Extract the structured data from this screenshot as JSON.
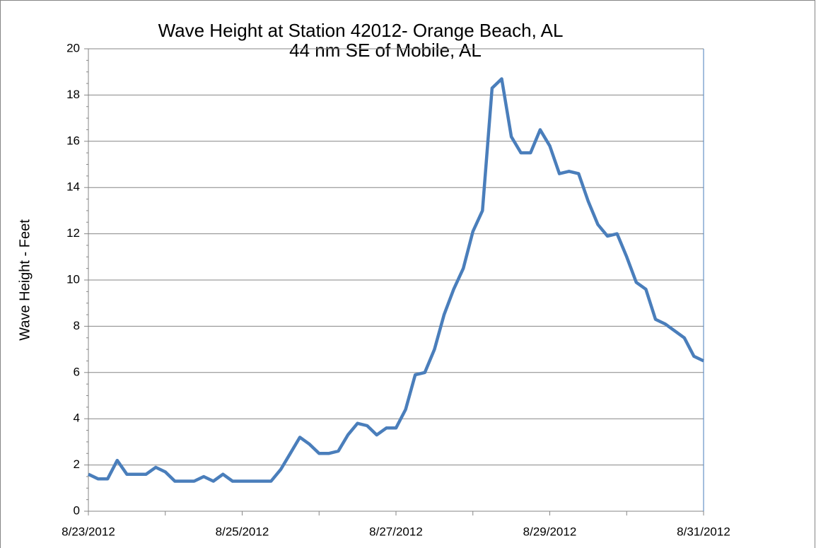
{
  "chart_data": {
    "type": "line",
    "title": "Wave Height at Station 42012- Orange Beach, AL",
    "subtitle": "44 nm SE of Mobile, AL",
    "y_label": "Wave Height -  Feet",
    "x": [
      "2012-08-23T00:00",
      "2012-08-23T03:00",
      "2012-08-23T06:00",
      "2012-08-23T09:00",
      "2012-08-23T12:00",
      "2012-08-23T15:00",
      "2012-08-23T18:00",
      "2012-08-23T21:00",
      "2012-08-24T00:00",
      "2012-08-24T03:00",
      "2012-08-24T06:00",
      "2012-08-24T09:00",
      "2012-08-24T12:00",
      "2012-08-24T15:00",
      "2012-08-24T18:00",
      "2012-08-24T21:00",
      "2012-08-25T00:00",
      "2012-08-25T03:00",
      "2012-08-25T06:00",
      "2012-08-25T09:00",
      "2012-08-25T12:00",
      "2012-08-25T15:00",
      "2012-08-25T18:00",
      "2012-08-25T21:00",
      "2012-08-26T00:00",
      "2012-08-26T03:00",
      "2012-08-26T06:00",
      "2012-08-26T09:00",
      "2012-08-26T12:00",
      "2012-08-26T15:00",
      "2012-08-26T18:00",
      "2012-08-26T21:00",
      "2012-08-27T00:00",
      "2012-08-27T03:00",
      "2012-08-27T06:00",
      "2012-08-27T09:00",
      "2012-08-27T12:00",
      "2012-08-27T15:00",
      "2012-08-27T18:00",
      "2012-08-27T21:00",
      "2012-08-28T00:00",
      "2012-08-28T03:00",
      "2012-08-28T06:00",
      "2012-08-28T09:00",
      "2012-08-28T12:00",
      "2012-08-28T15:00",
      "2012-08-28T18:00",
      "2012-08-28T21:00",
      "2012-08-29T00:00",
      "2012-08-29T03:00",
      "2012-08-29T06:00",
      "2012-08-29T09:00",
      "2012-08-29T12:00",
      "2012-08-29T15:00",
      "2012-08-29T18:00",
      "2012-08-29T21:00",
      "2012-08-30T00:00",
      "2012-08-30T03:00",
      "2012-08-30T06:00",
      "2012-08-30T09:00",
      "2012-08-30T12:00",
      "2012-08-30T15:00",
      "2012-08-30T18:00",
      "2012-08-30T21:00",
      "2012-08-31T00:00"
    ],
    "series": [
      {
        "name": "Wave Height",
        "color": "#4a7ebb",
        "values": [
          1.6,
          1.4,
          1.4,
          2.2,
          1.6,
          1.6,
          1.6,
          1.9,
          1.7,
          1.3,
          1.3,
          1.3,
          1.5,
          1.3,
          1.6,
          1.3,
          1.3,
          1.3,
          1.3,
          1.3,
          1.8,
          2.5,
          3.2,
          2.9,
          2.5,
          2.5,
          2.6,
          3.3,
          3.8,
          3.7,
          3.3,
          3.6,
          3.6,
          4.4,
          5.9,
          6.0,
          7.0,
          8.5,
          9.6,
          10.5,
          12.1,
          13.0,
          18.3,
          18.7,
          16.2,
          15.5,
          15.5,
          16.5,
          15.8,
          14.6,
          14.7,
          14.6,
          13.4,
          12.4,
          11.9,
          12.0,
          11.0,
          9.9,
          9.6,
          8.3,
          8.1,
          7.8,
          7.5,
          6.7,
          6.5
        ]
      }
    ],
    "xlim": [
      "2012-08-23T00:00",
      "2012-08-31T00:00"
    ],
    "xticks": [
      {
        "value": "2012-08-23T00:00",
        "label": "8/23/2012"
      },
      {
        "value": "2012-08-25T00:00",
        "label": "8/25/2012"
      },
      {
        "value": "2012-08-27T00:00",
        "label": "8/27/2012"
      },
      {
        "value": "2012-08-29T00:00",
        "label": "8/29/2012"
      },
      {
        "value": "2012-08-31T00:00",
        "label": "8/31/2012"
      }
    ],
    "ylim": [
      0,
      20
    ],
    "yticks": [
      0,
      2,
      4,
      6,
      8,
      10,
      12,
      14,
      16,
      18,
      20
    ],
    "grid": true
  }
}
